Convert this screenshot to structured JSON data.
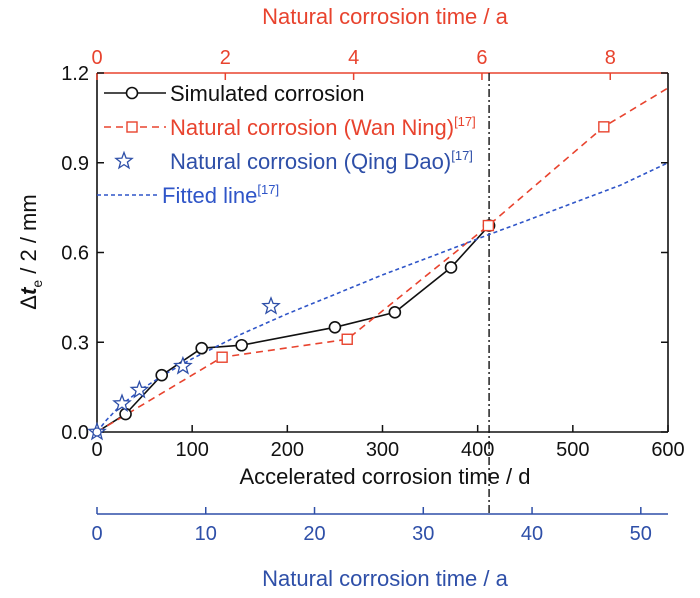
{
  "chart_data": {
    "type": "line",
    "colors": {
      "black": "#111111",
      "red": "#e8432e",
      "blue": "#2e4fa8",
      "blue_dash": "#2f55c8"
    },
    "bottom_axis": {
      "label": "Accelerated corrosion time / d",
      "range": [
        0,
        600
      ],
      "ticks": [
        0,
        100,
        200,
        300,
        400,
        500,
        600
      ]
    },
    "top_axis": {
      "label": "Natural corrosion time / a",
      "range": [
        0,
        8.9
      ],
      "ticks": [
        0,
        2,
        4,
        6,
        8
      ]
    },
    "lower_axis": {
      "label": "Natural corrosion time / a",
      "range": [
        0,
        52.5
      ],
      "ticks": [
        0,
        10,
        20,
        30,
        40,
        50
      ]
    },
    "y_axis": {
      "label_prefix": "Δ",
      "label_var": "t",
      "label_sub": "e",
      "label_suffix": " / 2 / mm",
      "range": [
        0,
        1.2
      ],
      "ticks": [
        "0.0",
        "0.3",
        "0.6",
        "0.9",
        "1.2"
      ]
    },
    "vline_x": 412,
    "series": [
      {
        "name": "Simulated corrosion",
        "axis": "bottom",
        "color": "#111111",
        "dash": "",
        "marker": "circle",
        "points": [
          [
            0,
            0
          ],
          [
            30,
            0.06
          ],
          [
            68,
            0.19
          ],
          [
            110,
            0.28
          ],
          [
            152,
            0.29
          ],
          [
            250,
            0.35
          ],
          [
            313,
            0.4
          ],
          [
            372,
            0.55
          ],
          [
            412,
            0.69
          ]
        ]
      },
      {
        "name": "Natural corrosion (Wan Ning)",
        "ref": "[17]",
        "axis": "top",
        "color": "#e8432e",
        "dash": "7,5",
        "marker": "square",
        "points": [
          [
            0,
            0
          ],
          [
            1.95,
            0.25
          ],
          [
            3.9,
            0.31
          ],
          [
            6.1,
            0.69
          ],
          [
            7.9,
            1.02
          ]
        ],
        "line_extend": [
          8.9,
          1.15
        ]
      },
      {
        "name": "Natural corrosion (Qing Dao)",
        "ref": "[17]",
        "axis": "lower",
        "color": "#2e4fa8",
        "dash": "",
        "marker": "star",
        "points": [
          [
            0,
            0
          ],
          [
            2.3,
            0.095
          ],
          [
            3.9,
            0.14
          ],
          [
            7.9,
            0.22
          ],
          [
            16,
            0.42
          ]
        ]
      },
      {
        "name": "Fitted line",
        "ref": "[17]",
        "axis": "bottom",
        "color": "#2f55c8",
        "dash": "4,3",
        "marker": "none",
        "points": [
          [
            0,
            0
          ],
          [
            10,
            0.04
          ],
          [
            25,
            0.09
          ],
          [
            50,
            0.15
          ],
          [
            75,
            0.2
          ],
          [
            100,
            0.245
          ],
          [
            150,
            0.325
          ],
          [
            200,
            0.395
          ],
          [
            250,
            0.46
          ],
          [
            300,
            0.525
          ],
          [
            350,
            0.585
          ],
          [
            412,
            0.66
          ],
          [
            450,
            0.705
          ],
          [
            500,
            0.765
          ],
          [
            550,
            0.825
          ],
          [
            600,
            0.9
          ]
        ]
      }
    ]
  }
}
